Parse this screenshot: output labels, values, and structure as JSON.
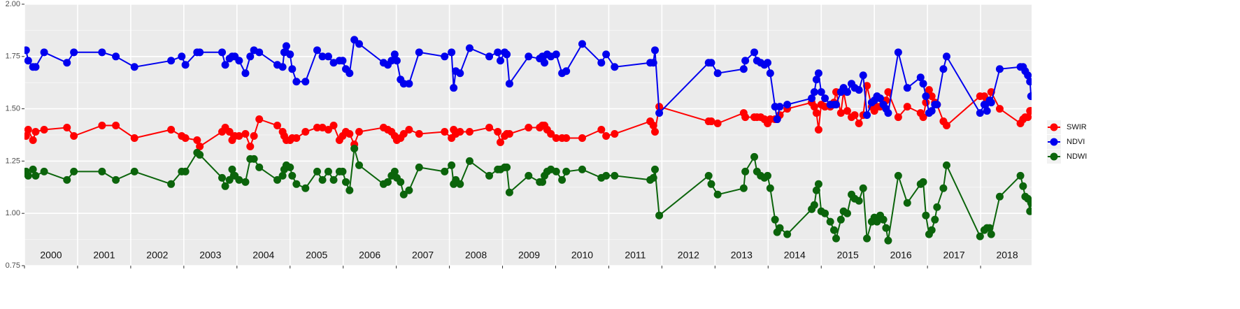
{
  "chart_data": {
    "type": "line",
    "x": [
      2000.03,
      2000.07,
      2000.16,
      2000.21,
      2000.37,
      2000.8,
      2000.93,
      2001.46,
      2001.72,
      2002.07,
      2002.76,
      2002.96,
      2003.03,
      2003.25,
      2003.3,
      2003.72,
      2003.78,
      2003.86,
      2003.91,
      2003.96,
      2004.04,
      2004.16,
      2004.25,
      2004.32,
      2004.42,
      2004.76,
      2004.86,
      2004.89,
      2004.93,
      2005,
      2005.04,
      2005.12,
      2005.29,
      2005.51,
      2005.61,
      2005.72,
      2005.82,
      2005.93,
      2005.99,
      2006.05,
      2006.12,
      2006.21,
      2006.3,
      2006.76,
      2006.84,
      2006.91,
      2006.97,
      2007.01,
      2007.08,
      2007.14,
      2007.24,
      2007.43,
      2007.91,
      2008.04,
      2008.08,
      2008.12,
      2008.2,
      2008.38,
      2008.75,
      2008.91,
      2008.96,
      2009.04,
      2009.08,
      2009.13,
      2009.49,
      2009.7,
      2009.75,
      2009.79,
      2009.84,
      2009.91,
      2010.01,
      2010.12,
      2010.2,
      2010.5,
      2010.86,
      2010.95,
      2011.11,
      2011.78,
      2011.84,
      2011.87,
      2011.95,
      2012.88,
      2012.93,
      2013.05,
      2013.54,
      2013.57,
      2013.74,
      2013.79,
      2013.86,
      2013.93,
      2013.99,
      2014.04,
      2014.13,
      2014.17,
      2014.22,
      2014.36,
      2014.82,
      2014.87,
      2014.91,
      2014.95,
      2015,
      2015.07,
      2015.17,
      2015.24,
      2015.28,
      2015.37,
      2015.42,
      2015.49,
      2015.57,
      2015.63,
      2015.71,
      2015.79,
      2015.86,
      2015.95,
      2016,
      2016.05,
      2016.11,
      2016.17,
      2016.22,
      2016.26,
      2016.45,
      2016.62,
      2016.87,
      2016.92,
      2016.97,
      2017.03,
      2017.08,
      2017.14,
      2017.18,
      2017.3,
      2017.36,
      2017.99,
      2018.07,
      2018.12,
      2018.17,
      2018.2,
      2018.36,
      2018.75,
      2018.8,
      2018.84,
      2018.89,
      2018.93,
      2018.95
    ],
    "series": [
      {
        "name": "SWIR",
        "color": "#ff0000",
        "values": [
          1.37,
          1.4,
          1.35,
          1.39,
          1.4,
          1.41,
          1.37,
          1.42,
          1.42,
          1.36,
          1.4,
          1.37,
          1.36,
          1.35,
          1.32,
          1.39,
          1.41,
          1.39,
          1.35,
          1.37,
          1.37,
          1.38,
          1.32,
          1.37,
          1.45,
          1.42,
          1.39,
          1.37,
          1.35,
          1.35,
          1.36,
          1.36,
          1.39,
          1.41,
          1.41,
          1.4,
          1.42,
          1.35,
          1.37,
          1.39,
          1.38,
          1.33,
          1.39,
          1.41,
          1.4,
          1.39,
          1.37,
          1.35,
          1.36,
          1.38,
          1.4,
          1.38,
          1.39,
          1.36,
          1.4,
          1.38,
          1.39,
          1.39,
          1.41,
          1.39,
          1.34,
          1.37,
          1.38,
          1.38,
          1.41,
          1.41,
          1.42,
          1.42,
          1.4,
          1.38,
          1.36,
          1.36,
          1.36,
          1.36,
          1.4,
          1.37,
          1.38,
          1.44,
          1.42,
          1.39,
          1.51,
          1.44,
          1.44,
          1.43,
          1.48,
          1.46,
          1.46,
          1.46,
          1.46,
          1.45,
          1.43,
          1.45,
          1.45,
          1.45,
          1.47,
          1.5,
          1.53,
          1.51,
          1.48,
          1.4,
          1.52,
          1.51,
          1.51,
          1.53,
          1.58,
          1.48,
          1.58,
          1.49,
          1.46,
          1.47,
          1.43,
          1.47,
          1.61,
          1.51,
          1.49,
          1.51,
          1.51,
          1.53,
          1.54,
          1.58,
          1.46,
          1.51,
          1.48,
          1.46,
          1.53,
          1.59,
          1.56,
          1.53,
          1.52,
          1.44,
          1.42,
          1.56,
          1.56,
          1.54,
          1.54,
          1.58,
          1.5,
          1.43,
          1.45,
          1.46,
          1.46,
          1.49,
          1.49
        ]
      },
      {
        "name": "NDVI",
        "color": "#0000ee",
        "values": [
          1.78,
          1.73,
          1.7,
          1.7,
          1.77,
          1.72,
          1.77,
          1.77,
          1.75,
          1.7,
          1.73,
          1.75,
          1.71,
          1.77,
          1.77,
          1.77,
          1.71,
          1.74,
          1.75,
          1.75,
          1.73,
          1.67,
          1.75,
          1.78,
          1.77,
          1.71,
          1.7,
          1.77,
          1.8,
          1.76,
          1.69,
          1.63,
          1.63,
          1.78,
          1.75,
          1.75,
          1.72,
          1.73,
          1.73,
          1.69,
          1.67,
          1.83,
          1.81,
          1.72,
          1.71,
          1.73,
          1.76,
          1.73,
          1.64,
          1.62,
          1.62,
          1.77,
          1.75,
          1.77,
          1.6,
          1.68,
          1.67,
          1.79,
          1.75,
          1.77,
          1.73,
          1.77,
          1.76,
          1.62,
          1.75,
          1.74,
          1.75,
          1.72,
          1.76,
          1.75,
          1.76,
          1.67,
          1.68,
          1.81,
          1.72,
          1.76,
          1.7,
          1.72,
          1.72,
          1.78,
          1.48,
          1.72,
          1.72,
          1.67,
          1.69,
          1.73,
          1.77,
          1.73,
          1.72,
          1.71,
          1.72,
          1.67,
          1.51,
          1.45,
          1.51,
          1.52,
          1.55,
          1.58,
          1.64,
          1.67,
          1.58,
          1.55,
          1.52,
          1.52,
          1.52,
          1.58,
          1.6,
          1.58,
          1.62,
          1.6,
          1.59,
          1.66,
          1.47,
          1.53,
          1.54,
          1.56,
          1.55,
          1.52,
          1.5,
          1.48,
          1.77,
          1.6,
          1.65,
          1.62,
          1.56,
          1.48,
          1.49,
          1.52,
          1.52,
          1.69,
          1.75,
          1.48,
          1.52,
          1.49,
          1.54,
          1.53,
          1.69,
          1.7,
          1.7,
          1.68,
          1.66,
          1.63,
          1.56
        ]
      },
      {
        "name": "NDWI",
        "color": "#0b640b",
        "values": [
          1.2,
          1.18,
          1.21,
          1.18,
          1.2,
          1.16,
          1.2,
          1.2,
          1.16,
          1.2,
          1.14,
          1.2,
          1.2,
          1.29,
          1.28,
          1.17,
          1.13,
          1.16,
          1.21,
          1.18,
          1.16,
          1.15,
          1.26,
          1.26,
          1.22,
          1.16,
          1.18,
          1.21,
          1.23,
          1.22,
          1.18,
          1.14,
          1.12,
          1.2,
          1.16,
          1.2,
          1.16,
          1.2,
          1.2,
          1.15,
          1.11,
          1.31,
          1.23,
          1.14,
          1.15,
          1.18,
          1.2,
          1.17,
          1.15,
          1.09,
          1.11,
          1.22,
          1.2,
          1.23,
          1.14,
          1.16,
          1.14,
          1.25,
          1.18,
          1.21,
          1.21,
          1.22,
          1.22,
          1.1,
          1.18,
          1.15,
          1.15,
          1.18,
          1.2,
          1.21,
          1.2,
          1.16,
          1.2,
          1.21,
          1.17,
          1.18,
          1.18,
          1.16,
          1.17,
          1.21,
          0.99,
          1.18,
          1.14,
          1.09,
          1.12,
          1.2,
          1.27,
          1.2,
          1.18,
          1.17,
          1.18,
          1.12,
          0.97,
          0.91,
          0.93,
          0.9,
          1.02,
          1.04,
          1.11,
          1.14,
          1.01,
          1.0,
          0.96,
          0.92,
          0.88,
          0.97,
          1.01,
          1.0,
          1.09,
          1.07,
          1.06,
          1.12,
          0.88,
          0.96,
          0.98,
          0.96,
          0.99,
          0.97,
          0.93,
          0.87,
          1.18,
          1.05,
          1.14,
          1.15,
          0.99,
          0.9,
          0.92,
          0.97,
          1.03,
          1.12,
          1.23,
          0.89,
          0.92,
          0.93,
          0.93,
          0.9,
          1.08,
          1.18,
          1.13,
          1.08,
          1.07,
          1.01,
          1.05
        ]
      }
    ],
    "year_labels": [
      "2000",
      "2001",
      "2002",
      "2003",
      "2004",
      "2005",
      "2006",
      "2007",
      "2008",
      "2009",
      "2010",
      "2011",
      "2012",
      "2013",
      "2014",
      "2015",
      "2016",
      "2017",
      "2018"
    ],
    "xlim": [
      2000,
      2018.96
    ],
    "xticks": [
      2000,
      2001,
      2002,
      2003,
      2004,
      2005,
      2006,
      2007,
      2008,
      2009,
      2010,
      2011,
      2012,
      2013,
      2014,
      2015,
      2016,
      2017,
      2018
    ],
    "ylim": [
      0.75,
      2.0
    ],
    "yticks": [
      0.75,
      {
        "value": 1.0,
        "label": "1.00"
      },
      1.25,
      {
        "value": 1.5,
        "label": "1.50"
      },
      1.75,
      {
        "value": 2.0,
        "label": "2.00"
      }
    ],
    "grid": true,
    "legend": "right"
  }
}
